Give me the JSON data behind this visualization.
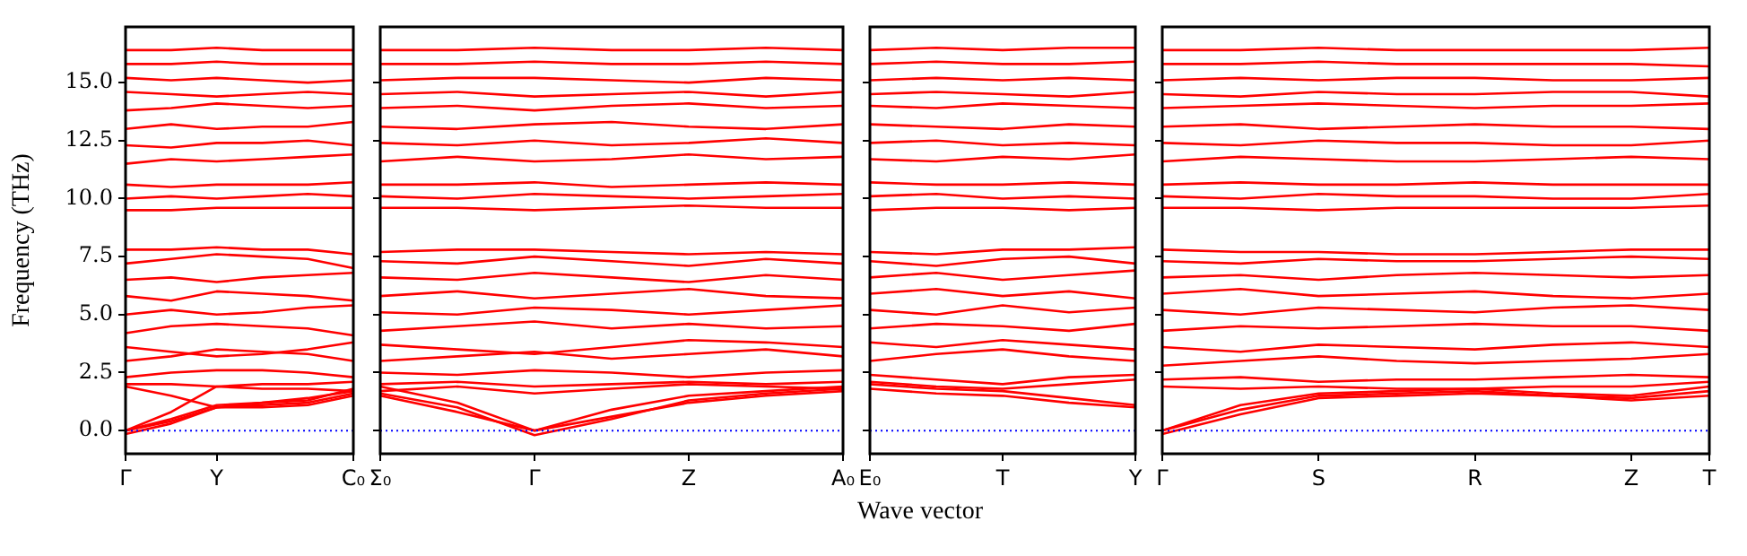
{
  "chart_data": [
    {
      "type": "line",
      "ylabel": "Frequency (THz)",
      "color": "#ff0000",
      "legend": false,
      "marker": "none",
      "categories": [
        "Γ",
        null,
        "Y",
        null,
        null,
        "C₀"
      ],
      "ylim": [
        -1,
        17.4
      ],
      "yticks": [
        {
          "value": 0,
          "label": "0.0"
        },
        {
          "value": 2.5,
          "label": "2.5"
        },
        {
          "value": 5,
          "label": "5.0"
        },
        {
          "value": 7.5,
          "label": "7.5"
        },
        {
          "value": 10,
          "label": "10.0"
        },
        {
          "value": 12.5,
          "label": "12.5"
        },
        {
          "value": 15,
          "label": "15.0"
        }
      ],
      "ref_lines": [
        {
          "axis": "y",
          "value": 0,
          "color": "#0000ff",
          "line_style": "dotted"
        }
      ],
      "series": [
        {
          "values": [
            0,
            0.4,
            1.0,
            1.1,
            1.2,
            1.6
          ]
        },
        {
          "values": [
            0,
            0.5,
            1.1,
            1.2,
            1.4,
            1.7
          ]
        },
        {
          "values": [
            0,
            0.8,
            1.9,
            1.8,
            1.8,
            1.7
          ]
        },
        {
          "values": [
            -0.15,
            0.3,
            1.0,
            1.0,
            1.1,
            1.5
          ]
        },
        {
          "values": [
            1.9,
            1.5,
            1.0,
            1.2,
            1.3,
            1.8
          ]
        },
        {
          "values": [
            2.0,
            2.0,
            1.9,
            2.0,
            2.0,
            2.1
          ]
        },
        {
          "values": [
            2.3,
            2.5,
            2.6,
            2.6,
            2.5,
            2.3
          ]
        },
        {
          "values": [
            3.0,
            3.2,
            3.5,
            3.4,
            3.3,
            3.0
          ]
        },
        {
          "values": [
            3.6,
            3.4,
            3.2,
            3.3,
            3.5,
            3.8
          ]
        },
        {
          "values": [
            4.2,
            4.5,
            4.6,
            4.5,
            4.4,
            4.1
          ]
        },
        {
          "values": [
            5.0,
            5.2,
            5.0,
            5.1,
            5.3,
            5.4
          ]
        },
        {
          "values": [
            5.8,
            5.6,
            6.0,
            5.9,
            5.8,
            5.6
          ]
        },
        {
          "values": [
            6.5,
            6.6,
            6.4,
            6.6,
            6.7,
            6.8
          ]
        },
        {
          "values": [
            7.2,
            7.4,
            7.6,
            7.5,
            7.4,
            7.0
          ]
        },
        {
          "values": [
            7.8,
            7.8,
            7.9,
            7.8,
            7.8,
            7.6
          ]
        },
        {
          "values": [
            9.5,
            9.5,
            9.6,
            9.6,
            9.6,
            9.6
          ]
        },
        {
          "values": [
            10.0,
            10.1,
            10.0,
            10.1,
            10.2,
            10.1
          ]
        },
        {
          "values": [
            10.6,
            10.5,
            10.6,
            10.6,
            10.6,
            10.7
          ]
        },
        {
          "values": [
            11.5,
            11.7,
            11.6,
            11.7,
            11.8,
            11.9
          ]
        },
        {
          "values": [
            12.3,
            12.2,
            12.4,
            12.4,
            12.5,
            12.3
          ]
        },
        {
          "values": [
            13.0,
            13.2,
            13.0,
            13.1,
            13.1,
            13.3
          ]
        },
        {
          "values": [
            13.8,
            13.9,
            14.1,
            14.0,
            13.9,
            14.0
          ]
        },
        {
          "values": [
            14.6,
            14.5,
            14.4,
            14.5,
            14.6,
            14.5
          ]
        },
        {
          "values": [
            15.2,
            15.1,
            15.2,
            15.1,
            15.0,
            15.1
          ]
        },
        {
          "values": [
            15.8,
            15.8,
            15.9,
            15.8,
            15.8,
            15.8
          ]
        },
        {
          "values": [
            16.4,
            16.4,
            16.5,
            16.4,
            16.4,
            16.4
          ]
        }
      ]
    },
    {
      "type": "line",
      "xlabel": "Wave vector",
      "color": "#ff0000",
      "legend": false,
      "marker": "none",
      "tick_labels": "x",
      "categories": [
        "Σ₀",
        null,
        "Γ",
        null,
        "Z",
        null,
        "A₀"
      ],
      "ylim": [
        -1,
        17.4
      ],
      "yticks": [
        {
          "value": 0,
          "label": null
        },
        {
          "value": 2.5,
          "label": null
        },
        {
          "value": 5,
          "label": null
        },
        {
          "value": 7.5,
          "label": null
        },
        {
          "value": 10,
          "label": null
        },
        {
          "value": 12.5,
          "label": null
        },
        {
          "value": 15,
          "label": null
        }
      ],
      "ref_lines": [
        {
          "axis": "y",
          "value": 0,
          "color": "#0000ff",
          "line_style": "dotted"
        }
      ],
      "series": [
        {
          "values": [
            1.5,
            0.8,
            0,
            0.6,
            1.2,
            1.5,
            1.7
          ]
        },
        {
          "values": [
            1.6,
            1.0,
            -0.2,
            0.5,
            1.3,
            1.6,
            1.8
          ]
        },
        {
          "values": [
            1.9,
            1.2,
            0,
            0.9,
            1.5,
            1.7,
            1.9
          ]
        },
        {
          "values": [
            1.7,
            1.9,
            1.6,
            1.8,
            2.0,
            1.9,
            1.8
          ]
        },
        {
          "values": [
            2.0,
            2.1,
            1.9,
            2.0,
            2.1,
            2.0,
            2.1
          ]
        },
        {
          "values": [
            2.5,
            2.4,
            2.6,
            2.5,
            2.3,
            2.5,
            2.6
          ]
        },
        {
          "values": [
            3.0,
            3.2,
            3.4,
            3.1,
            3.3,
            3.5,
            3.2
          ]
        },
        {
          "values": [
            3.7,
            3.5,
            3.3,
            3.6,
            3.9,
            3.8,
            3.6
          ]
        },
        {
          "values": [
            4.3,
            4.5,
            4.7,
            4.4,
            4.6,
            4.4,
            4.5
          ]
        },
        {
          "values": [
            5.1,
            5.0,
            5.3,
            5.2,
            5.0,
            5.2,
            5.4
          ]
        },
        {
          "values": [
            5.8,
            6.0,
            5.7,
            5.9,
            6.1,
            5.8,
            5.7
          ]
        },
        {
          "values": [
            6.6,
            6.5,
            6.8,
            6.6,
            6.4,
            6.7,
            6.5
          ]
        },
        {
          "values": [
            7.3,
            7.2,
            7.5,
            7.3,
            7.1,
            7.4,
            7.2
          ]
        },
        {
          "values": [
            7.7,
            7.8,
            7.8,
            7.7,
            7.6,
            7.7,
            7.6
          ]
        },
        {
          "values": [
            9.6,
            9.6,
            9.5,
            9.6,
            9.7,
            9.6,
            9.6
          ]
        },
        {
          "values": [
            10.1,
            10.0,
            10.2,
            10.1,
            10.0,
            10.1,
            10.2
          ]
        },
        {
          "values": [
            10.6,
            10.6,
            10.7,
            10.5,
            10.6,
            10.7,
            10.6
          ]
        },
        {
          "values": [
            11.6,
            11.8,
            11.6,
            11.7,
            11.9,
            11.7,
            11.8
          ]
        },
        {
          "values": [
            12.4,
            12.3,
            12.5,
            12.3,
            12.4,
            12.6,
            12.4
          ]
        },
        {
          "values": [
            13.1,
            13.0,
            13.2,
            13.3,
            13.1,
            13.0,
            13.2
          ]
        },
        {
          "values": [
            13.9,
            14.0,
            13.8,
            14.0,
            14.1,
            13.9,
            14.0
          ]
        },
        {
          "values": [
            14.5,
            14.6,
            14.4,
            14.5,
            14.6,
            14.4,
            14.6
          ]
        },
        {
          "values": [
            15.1,
            15.2,
            15.2,
            15.1,
            15.0,
            15.2,
            15.1
          ]
        },
        {
          "values": [
            15.8,
            15.8,
            15.9,
            15.8,
            15.8,
            15.9,
            15.8
          ]
        },
        {
          "values": [
            16.4,
            16.4,
            16.5,
            16.4,
            16.4,
            16.5,
            16.4
          ]
        }
      ]
    },
    {
      "type": "line",
      "color": "#ff0000",
      "legend": false,
      "marker": "none",
      "tick_labels": "x",
      "categories": [
        "E₀",
        null,
        "T",
        null,
        "Y"
      ],
      "ylim": [
        -1,
        17.4
      ],
      "yticks": [
        {
          "value": 0,
          "label": null
        },
        {
          "value": 2.5,
          "label": null
        },
        {
          "value": 5,
          "label": null
        },
        {
          "value": 7.5,
          "label": null
        },
        {
          "value": 10,
          "label": null
        },
        {
          "value": 12.5,
          "label": null
        },
        {
          "value": 15,
          "label": null
        }
      ],
      "ref_lines": [
        {
          "axis": "y",
          "value": 0,
          "color": "#0000ff",
          "line_style": "dotted"
        }
      ],
      "series": [
        {
          "values": [
            1.8,
            1.6,
            1.5,
            1.2,
            1.0
          ]
        },
        {
          "values": [
            2.0,
            1.8,
            1.7,
            1.4,
            1.1
          ]
        },
        {
          "values": [
            2.1,
            1.9,
            1.8,
            2.0,
            2.2
          ]
        },
        {
          "values": [
            2.4,
            2.2,
            2.0,
            2.3,
            2.4
          ]
        },
        {
          "values": [
            3.0,
            3.3,
            3.5,
            3.2,
            3.0
          ]
        },
        {
          "values": [
            3.8,
            3.6,
            3.9,
            3.7,
            3.5
          ]
        },
        {
          "values": [
            4.4,
            4.6,
            4.5,
            4.3,
            4.6
          ]
        },
        {
          "values": [
            5.2,
            5.0,
            5.4,
            5.1,
            5.3
          ]
        },
        {
          "values": [
            5.9,
            6.1,
            5.8,
            6.0,
            5.7
          ]
        },
        {
          "values": [
            6.6,
            6.8,
            6.5,
            6.7,
            6.9
          ]
        },
        {
          "values": [
            7.3,
            7.1,
            7.4,
            7.5,
            7.2
          ]
        },
        {
          "values": [
            7.7,
            7.6,
            7.8,
            7.8,
            7.9
          ]
        },
        {
          "values": [
            9.5,
            9.6,
            9.6,
            9.5,
            9.6
          ]
        },
        {
          "values": [
            10.1,
            10.2,
            10.0,
            10.1,
            10.0
          ]
        },
        {
          "values": [
            10.7,
            10.6,
            10.6,
            10.7,
            10.6
          ]
        },
        {
          "values": [
            11.7,
            11.6,
            11.8,
            11.7,
            11.9
          ]
        },
        {
          "values": [
            12.4,
            12.5,
            12.3,
            12.4,
            12.3
          ]
        },
        {
          "values": [
            13.2,
            13.1,
            13.0,
            13.2,
            13.1
          ]
        },
        {
          "values": [
            14.0,
            13.9,
            14.1,
            14.0,
            13.9
          ]
        },
        {
          "values": [
            14.5,
            14.6,
            14.5,
            14.4,
            14.6
          ]
        },
        {
          "values": [
            15.1,
            15.2,
            15.1,
            15.2,
            15.1
          ]
        },
        {
          "values": [
            15.8,
            15.9,
            15.8,
            15.8,
            15.9
          ]
        },
        {
          "values": [
            16.4,
            16.5,
            16.4,
            16.5,
            16.5
          ]
        }
      ]
    },
    {
      "type": "line",
      "color": "#ff0000",
      "legend": false,
      "marker": "none",
      "tick_labels": "x",
      "categories": [
        "Γ",
        null,
        "S",
        null,
        "R",
        null,
        "Z",
        "T"
      ],
      "ylim": [
        -1,
        17.4
      ],
      "yticks": [
        {
          "value": 0,
          "label": null
        },
        {
          "value": 2.5,
          "label": null
        },
        {
          "value": 5,
          "label": null
        },
        {
          "value": 7.5,
          "label": null
        },
        {
          "value": 10,
          "label": null
        },
        {
          "value": 12.5,
          "label": null
        },
        {
          "value": 15,
          "label": null
        }
      ],
      "ref_lines": [
        {
          "axis": "y",
          "value": 0,
          "color": "#0000ff",
          "line_style": "dotted"
        }
      ],
      "series": [
        {
          "values": [
            0,
            0.9,
            1.5,
            1.6,
            1.7,
            1.5,
            1.3,
            1.5
          ]
        },
        {
          "values": [
            -0.15,
            0.7,
            1.4,
            1.5,
            1.6,
            1.5,
            1.4,
            1.7
          ]
        },
        {
          "values": [
            0,
            1.1,
            1.6,
            1.7,
            1.8,
            1.6,
            1.5,
            1.9
          ]
        },
        {
          "values": [
            1.9,
            1.8,
            1.9,
            1.8,
            1.8,
            1.9,
            1.9,
            2.1
          ]
        },
        {
          "values": [
            2.2,
            2.3,
            2.1,
            2.2,
            2.2,
            2.3,
            2.4,
            2.3
          ]
        },
        {
          "values": [
            2.8,
            3.0,
            3.2,
            3.0,
            2.9,
            3.0,
            3.1,
            3.3
          ]
        },
        {
          "values": [
            3.6,
            3.4,
            3.7,
            3.6,
            3.5,
            3.7,
            3.8,
            3.6
          ]
        },
        {
          "values": [
            4.3,
            4.5,
            4.4,
            4.5,
            4.6,
            4.5,
            4.5,
            4.3
          ]
        },
        {
          "values": [
            5.2,
            5.0,
            5.3,
            5.2,
            5.1,
            5.3,
            5.4,
            5.2
          ]
        },
        {
          "values": [
            5.9,
            6.1,
            5.8,
            5.9,
            6.0,
            5.8,
            5.7,
            5.9
          ]
        },
        {
          "values": [
            6.6,
            6.7,
            6.5,
            6.7,
            6.8,
            6.7,
            6.6,
            6.7
          ]
        },
        {
          "values": [
            7.3,
            7.2,
            7.4,
            7.3,
            7.3,
            7.4,
            7.5,
            7.4
          ]
        },
        {
          "values": [
            7.8,
            7.7,
            7.7,
            7.6,
            7.6,
            7.7,
            7.8,
            7.8
          ]
        },
        {
          "values": [
            9.6,
            9.6,
            9.5,
            9.6,
            9.6,
            9.6,
            9.6,
            9.7
          ]
        },
        {
          "values": [
            10.1,
            10.0,
            10.2,
            10.1,
            10.1,
            10.0,
            10.0,
            10.2
          ]
        },
        {
          "values": [
            10.6,
            10.7,
            10.6,
            10.6,
            10.7,
            10.6,
            10.6,
            10.6
          ]
        },
        {
          "values": [
            11.6,
            11.8,
            11.7,
            11.6,
            11.6,
            11.7,
            11.8,
            11.7
          ]
        },
        {
          "values": [
            12.4,
            12.3,
            12.5,
            12.4,
            12.4,
            12.3,
            12.3,
            12.5
          ]
        },
        {
          "values": [
            13.1,
            13.2,
            13.0,
            13.1,
            13.2,
            13.1,
            13.1,
            13.0
          ]
        },
        {
          "values": [
            13.9,
            14.0,
            14.1,
            14.0,
            13.9,
            14.0,
            14.0,
            14.1
          ]
        },
        {
          "values": [
            14.5,
            14.4,
            14.6,
            14.5,
            14.5,
            14.6,
            14.6,
            14.4
          ]
        },
        {
          "values": [
            15.1,
            15.2,
            15.1,
            15.2,
            15.2,
            15.1,
            15.1,
            15.2
          ]
        },
        {
          "values": [
            15.8,
            15.8,
            15.9,
            15.8,
            15.8,
            15.8,
            15.8,
            15.7
          ]
        },
        {
          "values": [
            16.4,
            16.4,
            16.5,
            16.4,
            16.4,
            16.4,
            16.4,
            16.5
          ]
        }
      ]
    }
  ]
}
